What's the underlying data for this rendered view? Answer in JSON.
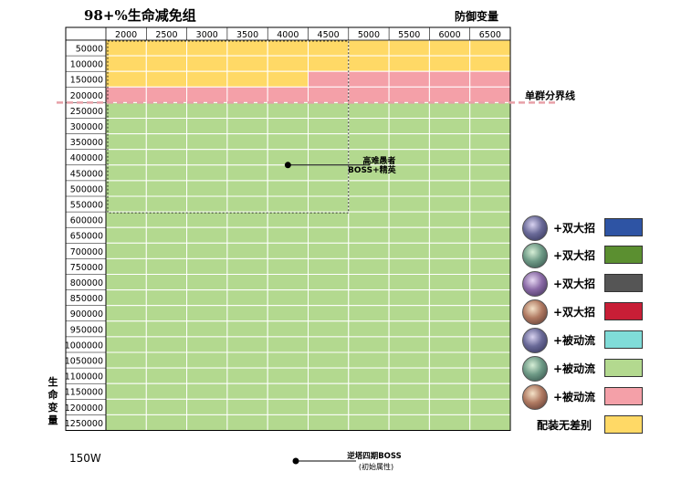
{
  "title": "98+%生命减免组",
  "x_axis_title": "防御变量",
  "y_axis_title": "生命变量",
  "footer_left": "150W",
  "chart_data": {
    "type": "heatmap",
    "x": [
      2000,
      2500,
      3000,
      3500,
      4000,
      4500,
      5000,
      5500,
      6000,
      6500
    ],
    "y": [
      50000,
      100000,
      150000,
      200000,
      250000,
      300000,
      350000,
      400000,
      450000,
      500000,
      550000,
      600000,
      650000,
      700000,
      750000,
      800000,
      850000,
      900000,
      950000,
      1000000,
      1050000,
      1100000,
      1150000,
      1200000,
      1250000
    ],
    "cells": [
      [
        "Y",
        "Y",
        "Y",
        "Y",
        "Y",
        "Y",
        "Y",
        "Y",
        "Y",
        "Y"
      ],
      [
        "Y",
        "Y",
        "Y",
        "Y",
        "Y",
        "Y",
        "Y",
        "Y",
        "Y",
        "Y"
      ],
      [
        "Y",
        "Y",
        "Y",
        "Y",
        "Y",
        "P",
        "P",
        "P",
        "P",
        "P"
      ],
      [
        "P",
        "P",
        "P",
        "P",
        "P",
        "P",
        "P",
        "P",
        "P",
        "P"
      ],
      [
        "G",
        "G",
        "G",
        "G",
        "G",
        "G",
        "G",
        "G",
        "G",
        "G"
      ],
      [
        "G",
        "G",
        "G",
        "G",
        "G",
        "G",
        "G",
        "G",
        "G",
        "G"
      ],
      [
        "G",
        "G",
        "G",
        "G",
        "G",
        "G",
        "G",
        "G",
        "G",
        "G"
      ],
      [
        "G",
        "G",
        "G",
        "G",
        "G",
        "G",
        "G",
        "G",
        "G",
        "G"
      ],
      [
        "G",
        "G",
        "G",
        "G",
        "G",
        "G",
        "G",
        "G",
        "G",
        "G"
      ],
      [
        "G",
        "G",
        "G",
        "G",
        "G",
        "G",
        "G",
        "G",
        "G",
        "G"
      ],
      [
        "G",
        "G",
        "G",
        "G",
        "G",
        "G",
        "G",
        "G",
        "G",
        "G"
      ],
      [
        "G",
        "G",
        "G",
        "G",
        "G",
        "G",
        "G",
        "G",
        "G",
        "G"
      ],
      [
        "G",
        "G",
        "G",
        "G",
        "G",
        "G",
        "G",
        "G",
        "G",
        "G"
      ],
      [
        "G",
        "G",
        "G",
        "G",
        "G",
        "G",
        "G",
        "G",
        "G",
        "G"
      ],
      [
        "G",
        "G",
        "G",
        "G",
        "G",
        "G",
        "G",
        "G",
        "G",
        "G"
      ],
      [
        "G",
        "G",
        "G",
        "G",
        "G",
        "G",
        "G",
        "G",
        "G",
        "G"
      ],
      [
        "G",
        "G",
        "G",
        "G",
        "G",
        "G",
        "G",
        "G",
        "G",
        "G"
      ],
      [
        "G",
        "G",
        "G",
        "G",
        "G",
        "G",
        "G",
        "G",
        "G",
        "G"
      ],
      [
        "G",
        "G",
        "G",
        "G",
        "G",
        "G",
        "G",
        "G",
        "G",
        "G"
      ],
      [
        "G",
        "G",
        "G",
        "G",
        "G",
        "G",
        "G",
        "G",
        "G",
        "G"
      ],
      [
        "G",
        "G",
        "G",
        "G",
        "G",
        "G",
        "G",
        "G",
        "G",
        "G"
      ],
      [
        "G",
        "G",
        "G",
        "G",
        "G",
        "G",
        "G",
        "G",
        "G",
        "G"
      ],
      [
        "G",
        "G",
        "G",
        "G",
        "G",
        "G",
        "G",
        "G",
        "G",
        "G"
      ],
      [
        "G",
        "G",
        "G",
        "G",
        "G",
        "G",
        "G",
        "G",
        "G",
        "G"
      ],
      [
        "G",
        "G",
        "G",
        "G",
        "G",
        "G",
        "G",
        "G",
        "G",
        "G"
      ]
    ],
    "colors": {
      "Y": "#ffd966",
      "P": "#f4a0a8",
      "G": "#b3d98f"
    },
    "divider": {
      "label": "单群分界线",
      "between_y": [
        200000,
        250000
      ],
      "color": "#e8a0a8"
    },
    "region": {
      "x_range": [
        2000,
        4500
      ],
      "y_range": [
        50000,
        550000
      ],
      "label_line1": "高难愚者",
      "label_line2": "BOSS+精英",
      "point": {
        "x": 4000,
        "y": 450000
      }
    },
    "footer_point": {
      "label_line1": "逆塔四期BOSS",
      "label_line2": "(初始属性)"
    },
    "legend": [
      {
        "label": "+双大招",
        "color": "#2e54a4",
        "icon": "blue-character-icon"
      },
      {
        "label": "+双大招",
        "color": "#5b8f30",
        "icon": "green-character-icon"
      },
      {
        "label": "+双大招",
        "color": "#555555",
        "icon": "purple-character-icon"
      },
      {
        "label": "+双大招",
        "color": "#c81e36",
        "icon": "pink-character-icon"
      },
      {
        "label": "+被动流",
        "color": "#80dcd8",
        "icon": "blue-character-icon"
      },
      {
        "label": "+被动流",
        "color": "#b3d98f",
        "icon": "green-character-icon"
      },
      {
        "label": "+被动流",
        "color": "#f4a0a8",
        "icon": "pink-character-icon"
      },
      {
        "label": "配装无差别",
        "color": "#ffd966",
        "icon": ""
      }
    ]
  }
}
